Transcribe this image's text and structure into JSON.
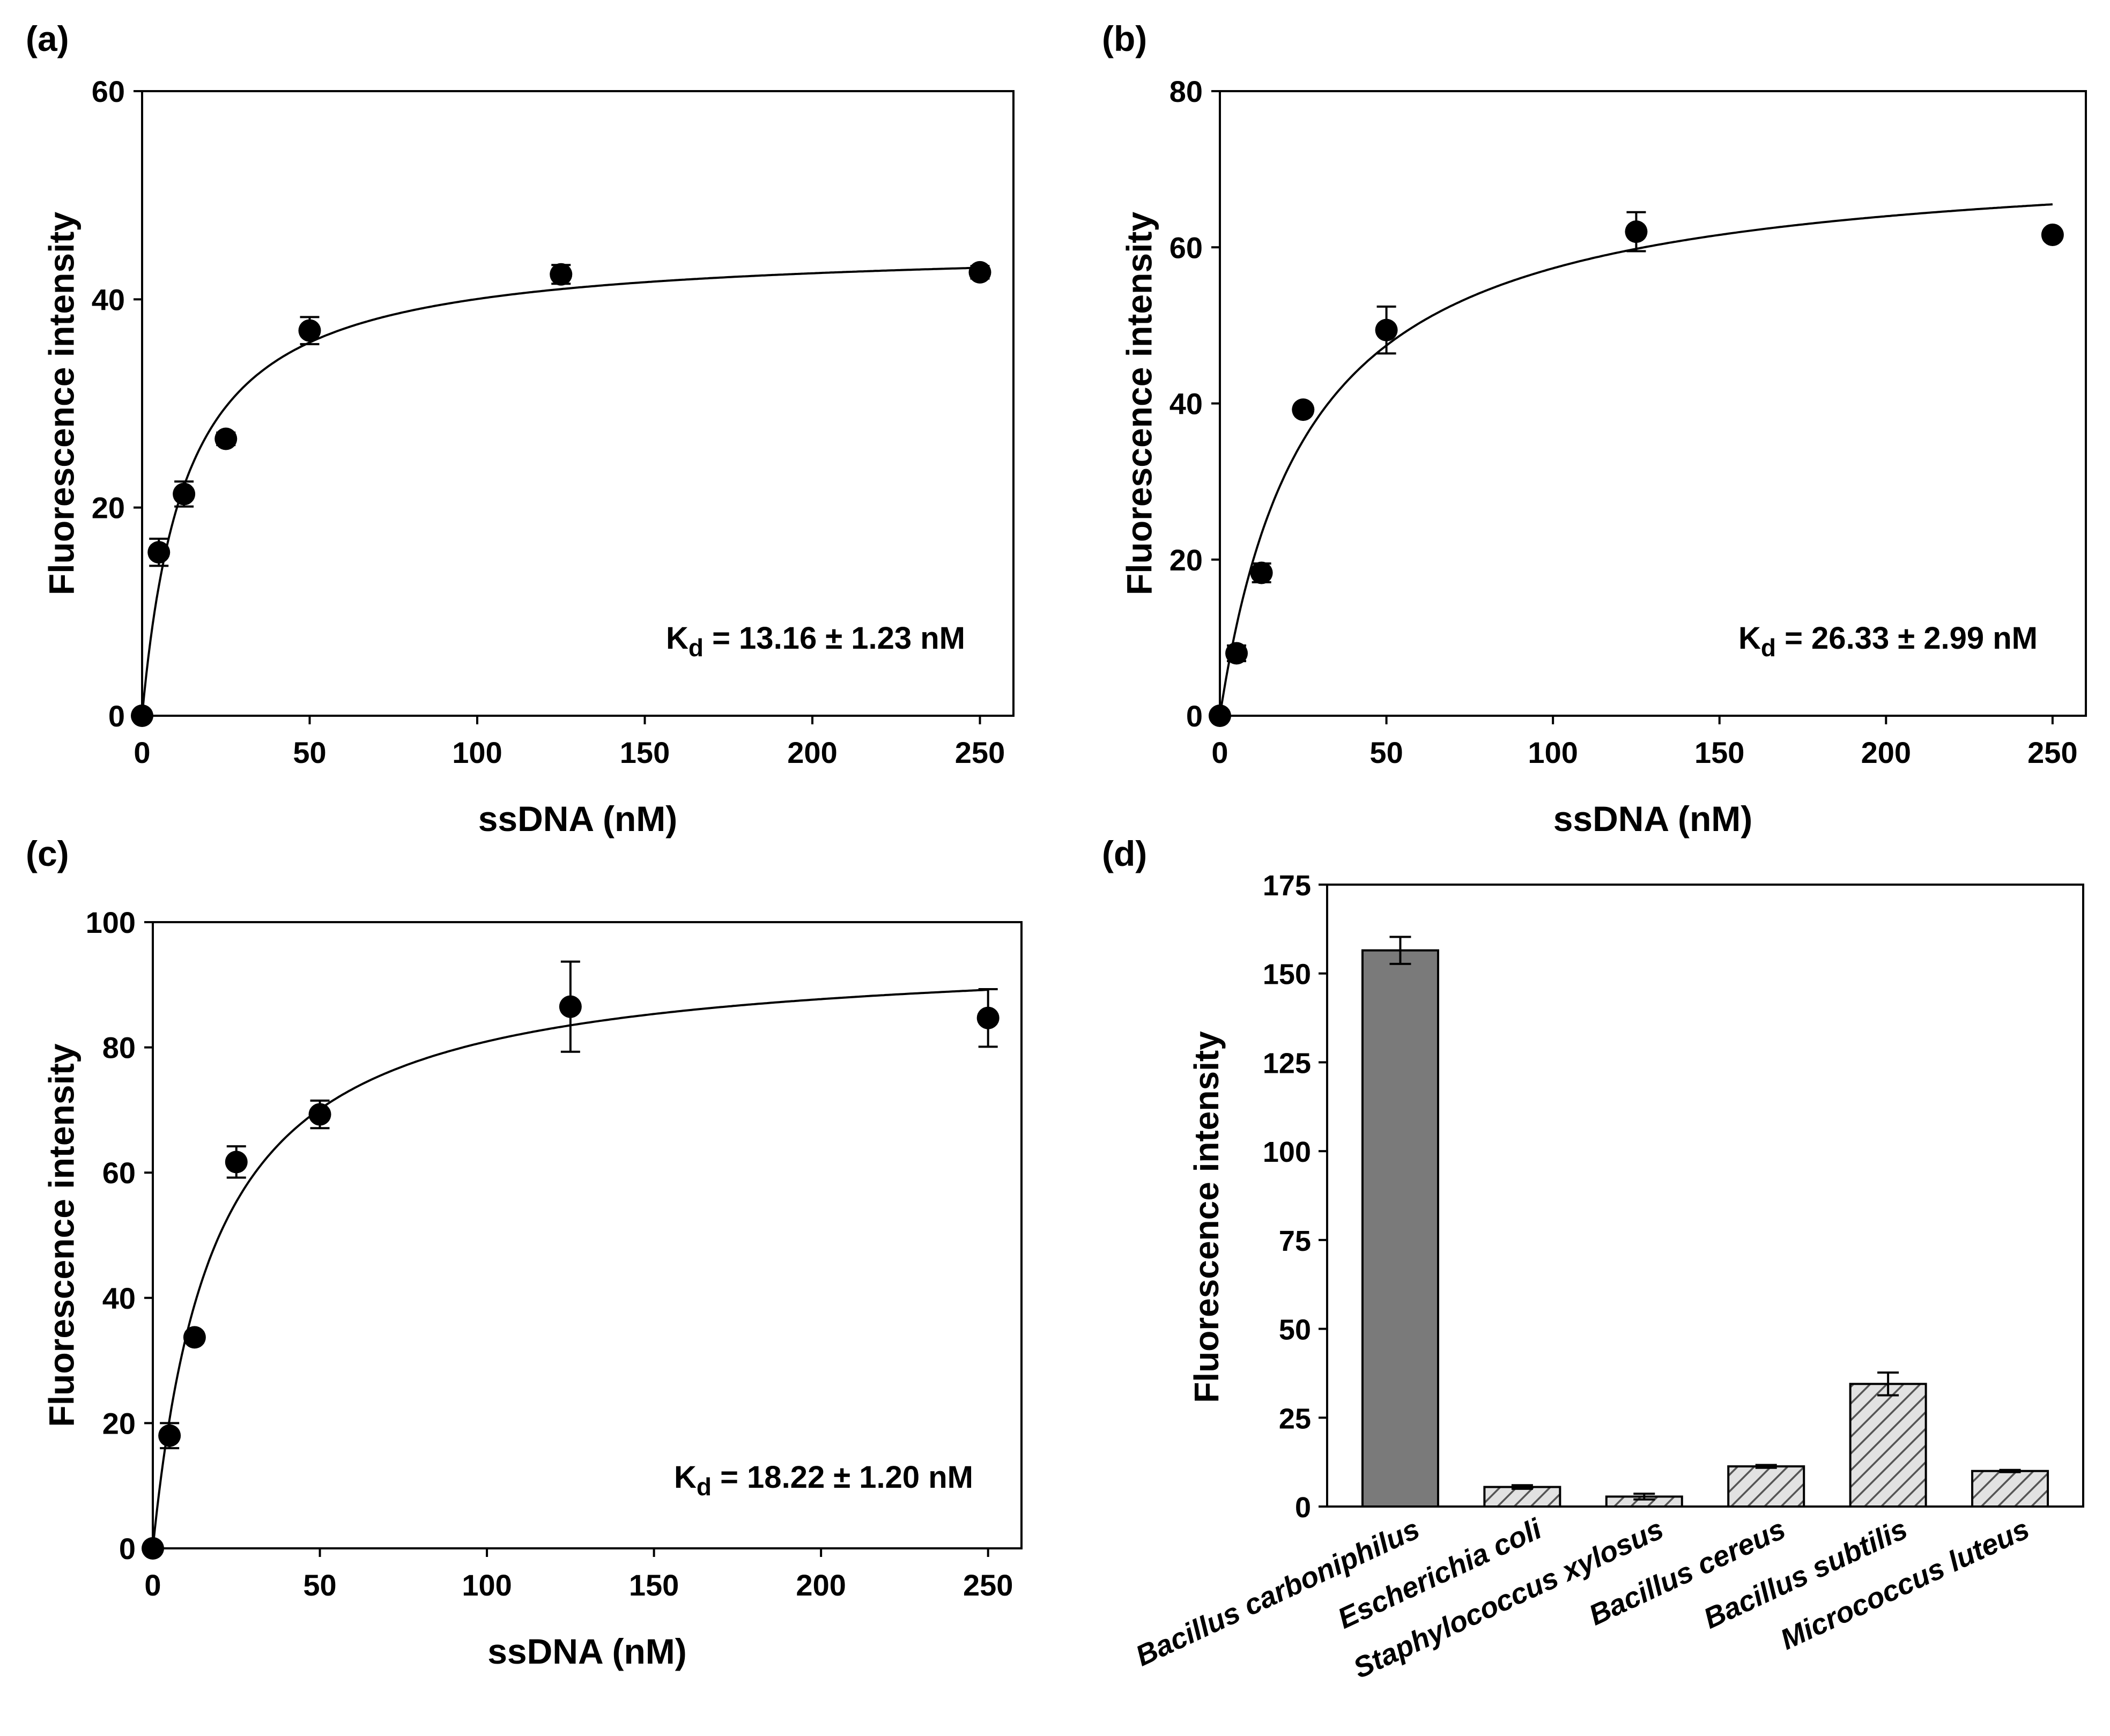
{
  "chart_data": [
    {
      "panel": "(a)",
      "type": "scatter",
      "xlabel": "ssDNA (nM)",
      "ylabel": "Fluorescence intensity",
      "xlim": [
        0,
        260
      ],
      "ylim": [
        0,
        60
      ],
      "xticks": [
        0,
        50,
        100,
        150,
        200,
        250
      ],
      "yticks": [
        0,
        20,
        40,
        60
      ],
      "points": [
        {
          "x": 0,
          "y": 0,
          "err": 0
        },
        {
          "x": 5,
          "y": 15.7,
          "err": 1.3
        },
        {
          "x": 12.5,
          "y": 21.3,
          "err": 1.2
        },
        {
          "x": 25,
          "y": 26.6,
          "err": 0.6
        },
        {
          "x": 50,
          "y": 37.0,
          "err": 1.3
        },
        {
          "x": 125,
          "y": 42.4,
          "err": 0.9
        },
        {
          "x": 250,
          "y": 42.6,
          "err": 0.6
        }
      ],
      "fit": {
        "model": "one-site binding",
        "Bmax": 45.3,
        "Kd": 13.16
      },
      "annotation": {
        "k": "K",
        "sub": "d",
        "rest": " = 13.16 ± 1.23 nM"
      }
    },
    {
      "panel": "(b)",
      "type": "scatter",
      "xlabel": "ssDNA (nM)",
      "ylabel": "Fluorescence intensity",
      "xlim": [
        0,
        260
      ],
      "ylim": [
        0,
        80
      ],
      "xticks": [
        0,
        50,
        100,
        150,
        200,
        250
      ],
      "yticks": [
        0,
        20,
        40,
        60,
        80
      ],
      "points": [
        {
          "x": 0,
          "y": 0,
          "err": 0
        },
        {
          "x": 5,
          "y": 8.0,
          "err": 1.0
        },
        {
          "x": 12.5,
          "y": 18.3,
          "err": 1.2
        },
        {
          "x": 25,
          "y": 39.2,
          "err": 0.6
        },
        {
          "x": 50,
          "y": 49.4,
          "err": 3.0
        },
        {
          "x": 125,
          "y": 62.0,
          "err": 2.5
        },
        {
          "x": 250,
          "y": 61.6,
          "err": 0.5
        }
      ],
      "fit": {
        "model": "one-site binding",
        "Bmax": 72.4,
        "Kd": 26.33
      },
      "annotation": {
        "k": "K",
        "sub": "d",
        "rest": " = 26.33 ± 2.99 nM"
      }
    },
    {
      "panel": "(c)",
      "type": "scatter",
      "xlabel": "ssDNA (nM)",
      "ylabel": "Fluorescence intensity",
      "xlim": [
        0,
        260
      ],
      "ylim": [
        0,
        100
      ],
      "xticks": [
        0,
        50,
        100,
        150,
        200,
        250
      ],
      "yticks": [
        0,
        20,
        40,
        60,
        80,
        100
      ],
      "points": [
        {
          "x": 0,
          "y": 0,
          "err": 0
        },
        {
          "x": 5,
          "y": 18.0,
          "err": 2.0
        },
        {
          "x": 12.5,
          "y": 33.7,
          "err": 0.8
        },
        {
          "x": 25,
          "y": 61.7,
          "err": 2.5
        },
        {
          "x": 50,
          "y": 69.3,
          "err": 2.2
        },
        {
          "x": 125,
          "y": 86.5,
          "err": 7.2
        },
        {
          "x": 250,
          "y": 84.7,
          "err": 4.6
        }
      ],
      "fit": {
        "model": "one-site binding",
        "Bmax": 95.7,
        "Kd": 18.22
      },
      "annotation": {
        "k": "K",
        "sub": "d",
        "rest": " = 18.22 ± 1.20 nM"
      }
    },
    {
      "panel": "(d)",
      "type": "bar",
      "ylabel": "Fluorescence intensity",
      "ylim": [
        0,
        175
      ],
      "yticks": [
        0,
        25,
        50,
        75,
        100,
        125,
        150,
        175
      ],
      "categories": [
        "Bacillus carboniphilus",
        "Escherichia coli",
        "Staphylococcus xylosus",
        "Bacillus cereus",
        "Bacillus subtilis",
        "Micrococcus luteus"
      ],
      "values": [
        156.5,
        5.5,
        2.8,
        11.3,
        34.5,
        10.0
      ],
      "errors": [
        3.8,
        0.5,
        0.8,
        0.4,
        3.2,
        0.3
      ],
      "fills": [
        "solid",
        "hatched",
        "hatched",
        "hatched",
        "hatched",
        "hatched"
      ],
      "colors": {
        "solid": "#7a7a7a",
        "hatched": "#d9d9d9"
      }
    }
  ]
}
